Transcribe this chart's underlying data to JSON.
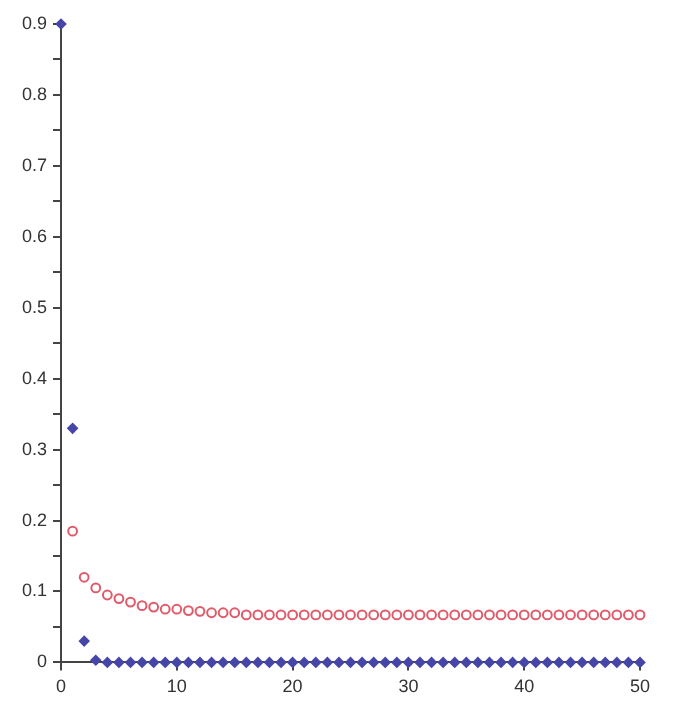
{
  "chart_data": {
    "type": "scatter",
    "x": [
      0,
      1,
      2,
      3,
      4,
      5,
      6,
      7,
      8,
      9,
      10,
      11,
      12,
      13,
      14,
      15,
      16,
      17,
      18,
      19,
      20,
      21,
      22,
      23,
      24,
      25,
      26,
      27,
      28,
      29,
      30,
      31,
      32,
      33,
      34,
      35,
      36,
      37,
      38,
      39,
      40,
      41,
      42,
      43,
      44,
      45,
      46,
      47,
      48,
      49,
      50
    ],
    "series": [
      {
        "color": "#e05a6a",
        "marker": "circle",
        "values": [
          null,
          0.185,
          0.12,
          0.105,
          0.095,
          0.09,
          0.085,
          0.08,
          0.078,
          0.075,
          0.075,
          0.073,
          0.072,
          0.07,
          0.07,
          0.07,
          0.067,
          0.067,
          0.067,
          0.067,
          0.067,
          0.067,
          0.067,
          0.067,
          0.067,
          0.067,
          0.067,
          0.067,
          0.067,
          0.067,
          0.067,
          0.067,
          0.067,
          0.067,
          0.067,
          0.067,
          0.067,
          0.067,
          0.067,
          0.067,
          0.067,
          0.067,
          0.067,
          0.067,
          0.067,
          0.067,
          0.067,
          0.067,
          0.067,
          0.067,
          0.067
        ]
      },
      {
        "color": "#4646a8",
        "marker": "diamond",
        "values": [
          0.9,
          0.33,
          0.03,
          0.003,
          0,
          0,
          0,
          0,
          0,
          0,
          0,
          0,
          0,
          0,
          0,
          0,
          0,
          0,
          0,
          0,
          0,
          0,
          0,
          0,
          0,
          0,
          0,
          0,
          0,
          0,
          0,
          0,
          0,
          0,
          0,
          0,
          0,
          0,
          0,
          0,
          0,
          0,
          0,
          0,
          0,
          0,
          0,
          0,
          0,
          0,
          0
        ]
      }
    ],
    "xlim": [
      0,
      50
    ],
    "xticks": [
      0,
      10,
      20,
      30,
      40,
      50
    ],
    "ylim": [
      0,
      0.9
    ],
    "yticks": [
      0,
      {
        "value": 0.05,
        "label": null
      },
      0.1,
      {
        "value": 0.15,
        "label": null
      },
      0.2,
      {
        "value": 0.25,
        "label": null
      },
      0.3,
      {
        "value": 0.35,
        "label": null
      },
      0.4,
      {
        "value": 0.45,
        "label": null
      },
      0.5,
      {
        "value": 0.55,
        "label": null
      },
      0.6,
      {
        "value": 0.65,
        "label": null
      },
      0.7,
      {
        "value": 0.75,
        "label": null
      },
      0.8,
      {
        "value": 0.85,
        "label": null
      },
      0.9
    ],
    "grid": false,
    "legend": false
  }
}
